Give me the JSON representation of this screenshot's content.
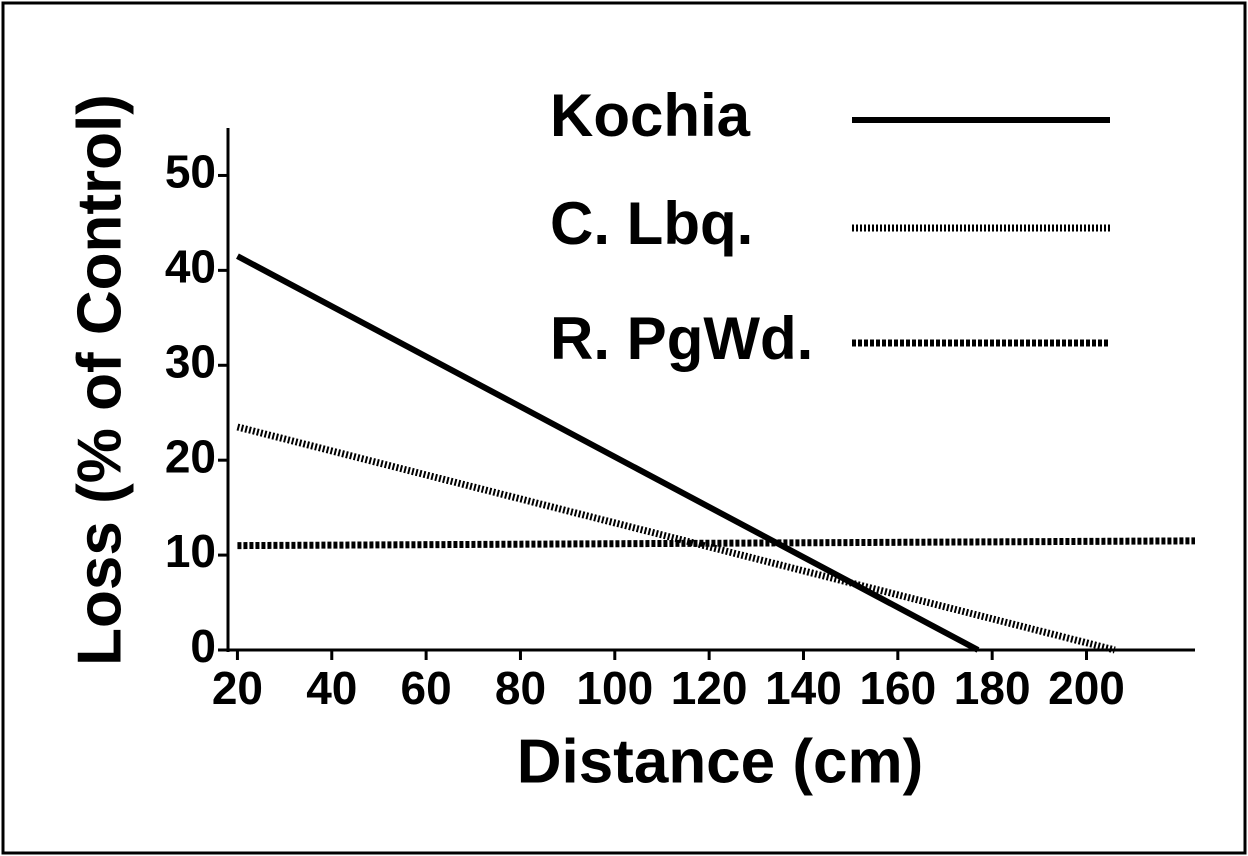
{
  "chart_data": {
    "type": "line",
    "x_label": "Distance (cm)",
    "y_label": "Loss (% of Control)",
    "xlim": [
      18,
      223
    ],
    "ylim": [
      0,
      55
    ],
    "xticks": [
      20,
      40,
      60,
      80,
      100,
      120,
      140,
      160,
      180,
      200
    ],
    "yticks": [
      0,
      10,
      20,
      30,
      40,
      50
    ],
    "legend": "top-right",
    "series": [
      {
        "name": "Kochia",
        "color": "#000000",
        "style": "solid",
        "x": [
          20,
          177
        ],
        "values": [
          41.5,
          0
        ]
      },
      {
        "name": "C. Lbq.",
        "color": "#000000",
        "style": "dotted",
        "x": [
          20,
          206
        ],
        "values": [
          23.5,
          0
        ]
      },
      {
        "name": "R. PgWd.",
        "color": "#000000",
        "style": "dashed",
        "x": [
          20,
          223
        ],
        "values": [
          11,
          11.5
        ]
      }
    ]
  }
}
